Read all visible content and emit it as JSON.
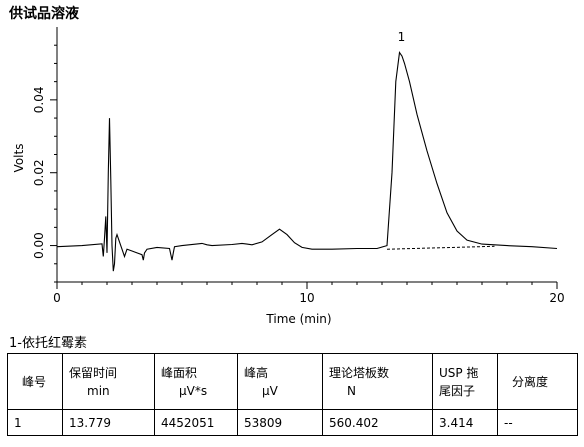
{
  "sample_title": "供试品溶液",
  "chart_data": {
    "type": "line",
    "xlabel": "Time (min)",
    "ylabel": "Volts",
    "xlim": [
      0,
      20
    ],
    "ylim": [
      -0.01,
      0.06
    ],
    "x_ticks": [
      0,
      10,
      20
    ],
    "y_ticks": [
      0.0,
      0.02,
      0.04
    ],
    "y_tick_labels": [
      "0.00",
      "0.02",
      "0.04"
    ],
    "grid": false,
    "series": [
      {
        "x": [
          0.0,
          1.0,
          1.8,
          1.85,
          1.9,
          1.95,
          2.0,
          2.05,
          2.1,
          2.15,
          2.2,
          2.25,
          2.3,
          2.35,
          2.4,
          2.5,
          2.6,
          2.7,
          2.8,
          3.0,
          3.2,
          3.4,
          3.45,
          3.5,
          3.6,
          4.0,
          4.5,
          4.6,
          4.65,
          4.7,
          5.0,
          5.8,
          6.0,
          6.2,
          7.0,
          7.4,
          7.6,
          7.8,
          8.2,
          8.6,
          8.9,
          9.2,
          9.5,
          9.8,
          10.2,
          11.0,
          12.0,
          12.8,
          13.2,
          13.4,
          13.55,
          13.7,
          13.8,
          13.9,
          14.1,
          14.4,
          14.8,
          15.2,
          15.6,
          16.0,
          16.4,
          17.0,
          18.0,
          19.0,
          20.0
        ],
        "y": [
          -0.0003,
          0.0,
          0.0005,
          -0.003,
          0.002,
          0.008,
          -0.002,
          0.02,
          0.035,
          0.018,
          0.0,
          -0.007,
          -0.005,
          0.002,
          0.003,
          0.001,
          -0.001,
          -0.003,
          -0.001,
          -0.0015,
          -0.002,
          -0.0025,
          -0.004,
          -0.002,
          -0.001,
          -0.0005,
          -0.0008,
          -0.004,
          -0.002,
          -0.0003,
          0.0,
          0.0006,
          0.0002,
          0.0,
          0.0003,
          0.0006,
          0.0004,
          0.0002,
          0.001,
          0.003,
          0.0045,
          0.003,
          0.0008,
          -0.0005,
          -0.001,
          -0.001,
          -0.0008,
          -0.0008,
          0.0,
          0.02,
          0.045,
          0.053,
          0.052,
          0.05,
          0.045,
          0.036,
          0.026,
          0.017,
          0.009,
          0.004,
          0.0015,
          0.0004,
          0.0,
          -0.0003,
          -0.0008
        ]
      }
    ],
    "baseline": {
      "x": [
        13.2,
        17.5
      ],
      "y": [
        -0.001,
        -0.0002
      ]
    },
    "peak_labels": [
      {
        "text": "1",
        "x": 13.78,
        "y": 0.055
      }
    ]
  },
  "peak_table": {
    "title": "1-依托红霉素",
    "headers": [
      [
        "峰号"
      ],
      [
        "保留时间",
        "min"
      ],
      [
        "峰面积",
        "μV*s"
      ],
      [
        "峰高",
        "μV"
      ],
      [
        "理论塔板数",
        "N"
      ],
      [
        "USP 拖",
        "尾因子"
      ],
      [
        "分离度"
      ]
    ],
    "rows": [
      [
        "1",
        "13.779",
        "4452051",
        "53809",
        "560.402",
        "3.414",
        "--"
      ]
    ]
  }
}
